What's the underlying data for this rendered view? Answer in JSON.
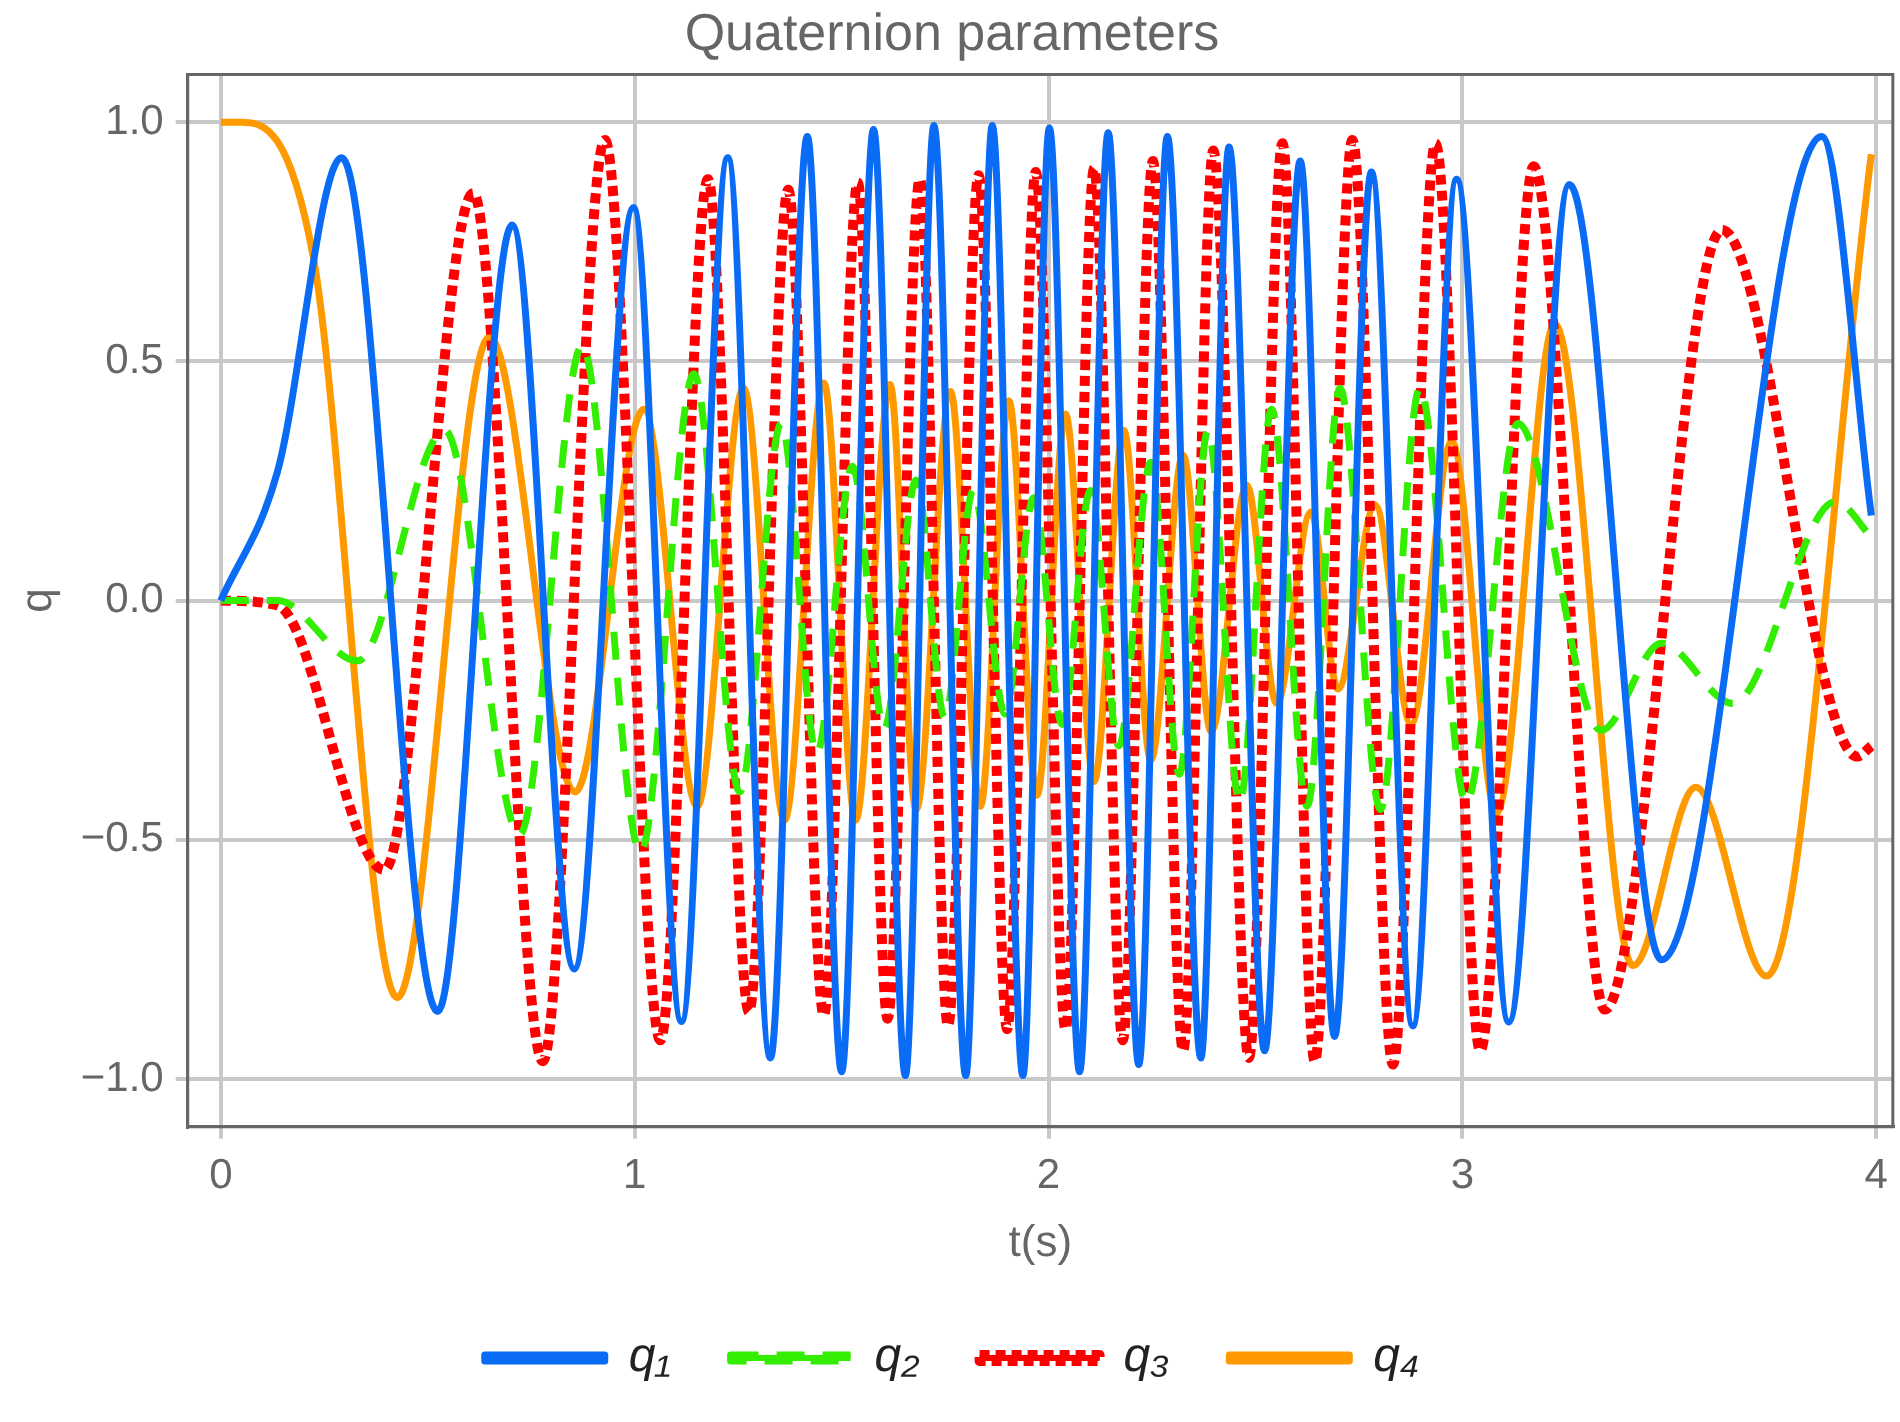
{
  "chart_data": {
    "type": "line",
    "title": "Quaternion parameters",
    "xlabel": "t(s)",
    "ylabel": "q",
    "xlim": [
      -0.08,
      4.04
    ],
    "ylim": [
      -1.1,
      1.1
    ],
    "xticks": [
      0,
      1,
      2,
      3,
      4
    ],
    "yticks": [
      {
        "value": -1,
        "label": "−1.0"
      },
      {
        "value": -0.5,
        "label": "−0.5"
      },
      {
        "value": 0,
        "label": "0.0"
      },
      {
        "value": 0.5,
        "label": "0.5"
      },
      {
        "value": 1,
        "label": "1.0"
      }
    ],
    "grid": true,
    "legend": "bottom",
    "series": [
      {
        "name": "q₁",
        "color": "#0a6cf5",
        "line_style": "solid",
        "x": [
          0,
          0.137,
          0.292,
          0.524,
          0.704,
          0.854,
          0.997,
          1.113,
          1.225,
          1.328,
          1.417,
          1.5,
          1.577,
          1.654,
          1.723,
          1.8,
          1.864,
          1.938,
          2.002,
          2.075,
          2.144,
          2.218,
          2.287,
          2.368,
          2.436,
          2.522,
          2.608,
          2.691,
          2.78,
          2.88,
          2.986,
          3.112,
          3.258,
          3.481,
          3.868,
          3.988
        ],
        "values": [
          0,
          0.27,
          0.926,
          -0.859,
          0.785,
          -0.77,
          0.822,
          -0.88,
          0.926,
          -0.956,
          0.97,
          -0.985,
          0.985,
          -0.993,
          0.993,
          -0.993,
          0.993,
          -0.993,
          0.988,
          -0.985,
          0.978,
          -0.97,
          0.97,
          -0.956,
          0.948,
          -0.941,
          0.919,
          -0.911,
          0.896,
          -0.889,
          0.881,
          -0.881,
          0.87,
          -0.751,
          0.97,
          0.178
        ]
      },
      {
        "name": "q₂",
        "color": "#33ee00",
        "line_style": "dashed",
        "x": [
          0,
          0.137,
          0.33,
          0.541,
          0.722,
          0.873,
          1.014,
          1.143,
          1.254,
          1.354,
          1.44,
          1.526,
          1.603,
          1.68,
          1.749,
          1.818,
          1.895,
          1.964,
          2.033,
          2.101,
          2.17,
          2.247,
          2.316,
          2.385,
          2.462,
          2.539,
          2.625,
          2.704,
          2.802,
          2.897,
          3.009,
          3.134,
          3.335,
          3.481,
          3.653,
          3.902,
          3.988
        ],
        "values": [
          0,
          0,
          -0.126,
          0.356,
          -0.489,
          0.533,
          -0.526,
          0.474,
          -0.4,
          0.37,
          -0.319,
          0.281,
          -0.267,
          0.252,
          -0.244,
          0.23,
          -0.237,
          0.215,
          -0.259,
          0.23,
          -0.304,
          0.289,
          -0.363,
          0.356,
          -0.422,
          0.4,
          -0.43,
          0.444,
          -0.437,
          0.444,
          -0.422,
          0.37,
          -0.271,
          -0.089,
          -0.215,
          0.207,
          0.133
        ]
      },
      {
        "name": "q₃",
        "color": "#ff0000",
        "line_style": "dotted",
        "x": [
          0,
          0.137,
          0.395,
          0.61,
          0.778,
          0.928,
          1.062,
          1.177,
          1.276,
          1.371,
          1.457,
          1.539,
          1.611,
          1.689,
          1.757,
          1.831,
          1.9,
          1.969,
          2.041,
          2.11,
          2.179,
          2.252,
          2.325,
          2.398,
          2.484,
          2.565,
          2.643,
          2.734,
          2.832,
          2.935,
          3.043,
          3.172,
          3.344,
          3.627,
          3.954,
          3.988
        ],
        "values": [
          0,
          -0.01,
          -0.563,
          0.852,
          -0.963,
          0.963,
          -0.919,
          0.881,
          -0.86,
          0.859,
          -0.867,
          0.874,
          -0.874,
          0.881,
          -0.889,
          0.889,
          -0.896,
          0.896,
          -0.896,
          0.904,
          -0.919,
          0.919,
          -0.941,
          0.941,
          -0.956,
          0.956,
          -0.963,
          0.963,
          -0.97,
          0.956,
          -0.941,
          0.908,
          -0.855,
          0.775,
          -0.326,
          -0.304
        ]
      },
      {
        "name": "q₄",
        "color": "#ff9900",
        "line_style": "solid",
        "x": [
          0,
          0.05,
          0.223,
          0.426,
          0.649,
          0.856,
          1.022,
          1.151,
          1.263,
          1.362,
          1.457,
          1.534,
          1.617,
          1.68,
          1.763,
          1.835,
          1.904,
          1.972,
          2.041,
          2.11,
          2.182,
          2.247,
          2.325,
          2.393,
          2.479,
          2.551,
          2.634,
          2.699,
          2.789,
          2.876,
          2.974,
          3.082,
          3.223,
          3.412,
          3.564,
          3.735,
          3.988
        ],
        "values": [
          1,
          1,
          0.72,
          -0.83,
          0.551,
          -0.4,
          0.4,
          -0.43,
          0.444,
          -0.459,
          0.455,
          -0.459,
          0.452,
          -0.437,
          0.437,
          -0.43,
          0.418,
          -0.407,
          0.39,
          -0.378,
          0.356,
          -0.333,
          0.304,
          -0.274,
          0.241,
          -0.215,
          0.185,
          -0.185,
          0.2,
          -0.259,
          0.333,
          -0.444,
          0.578,
          -0.763,
          -0.39,
          -0.785,
          0.933
        ]
      }
    ]
  }
}
